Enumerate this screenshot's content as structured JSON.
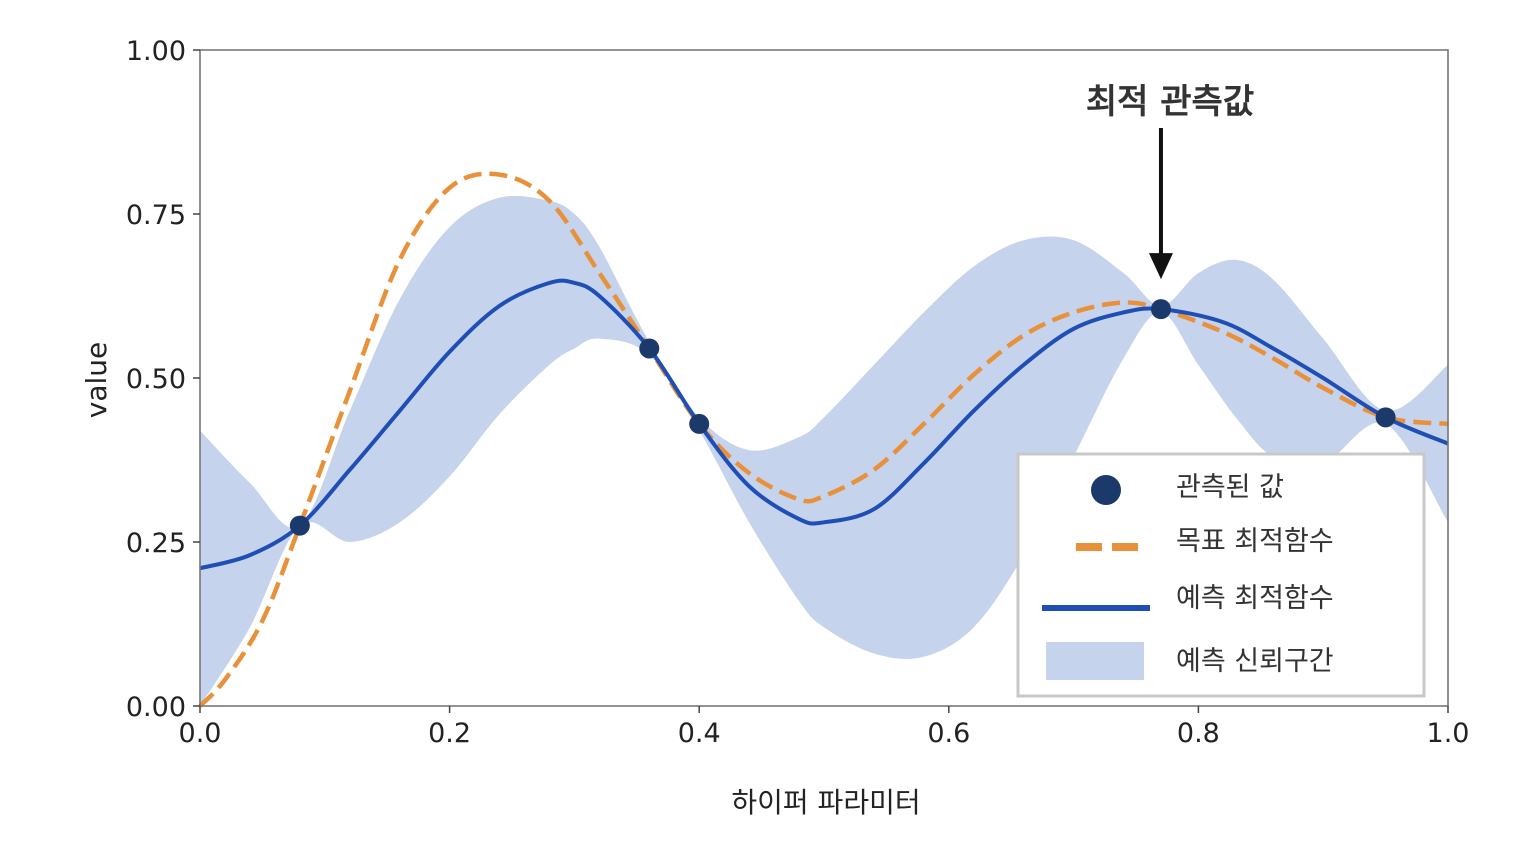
{
  "chart_data": {
    "type": "line",
    "xlabel": "하이퍼 파라미터",
    "ylabel": "value",
    "xlim": [
      0.0,
      1.0
    ],
    "ylim": [
      0.0,
      1.0
    ],
    "xticks": [
      0.0,
      0.2,
      0.4,
      0.6,
      0.8,
      1.0
    ],
    "xtick_labels": [
      "0.0",
      "0.2",
      "0.4",
      "0.6",
      "0.8",
      "1.0"
    ],
    "yticks": [
      0.0,
      0.25,
      0.5,
      0.75,
      1.0
    ],
    "ytick_labels": [
      "0.00",
      "0.25",
      "0.50",
      "0.75",
      "1.00"
    ],
    "grid": false,
    "legend_position": "bottom-right",
    "annotation": {
      "text": "최적 관측값",
      "x": 0.77,
      "y": 0.605
    },
    "series": [
      {
        "name": "관측된 값",
        "kind": "scatter",
        "color": "#1b3a6b",
        "x": [
          0.08,
          0.36,
          0.4,
          0.77,
          0.95
        ],
        "y": [
          0.275,
          0.545,
          0.43,
          0.605,
          0.44
        ]
      },
      {
        "name": "목표 최적함수",
        "kind": "dashed-line",
        "color": "#e8913a",
        "x": [
          0.0,
          0.02,
          0.05,
          0.08,
          0.12,
          0.16,
          0.2,
          0.24,
          0.28,
          0.32,
          0.36,
          0.4,
          0.44,
          0.48,
          0.5,
          0.54,
          0.58,
          0.62,
          0.66,
          0.7,
          0.74,
          0.77,
          0.82,
          0.86,
          0.9,
          0.95,
          1.0
        ],
        "y": [
          0.0,
          0.04,
          0.13,
          0.275,
          0.48,
          0.68,
          0.79,
          0.81,
          0.77,
          0.66,
          0.545,
          0.43,
          0.355,
          0.315,
          0.32,
          0.36,
          0.43,
          0.505,
          0.565,
          0.6,
          0.615,
          0.605,
          0.57,
          0.53,
          0.485,
          0.44,
          0.43
        ]
      },
      {
        "name": "예측 최적함수",
        "kind": "line",
        "color": "#1f4fb4",
        "x": [
          0.0,
          0.04,
          0.08,
          0.12,
          0.16,
          0.2,
          0.24,
          0.28,
          0.3,
          0.32,
          0.36,
          0.4,
          0.44,
          0.48,
          0.5,
          0.54,
          0.58,
          0.62,
          0.66,
          0.7,
          0.74,
          0.77,
          0.82,
          0.86,
          0.9,
          0.95,
          1.0
        ],
        "y": [
          0.21,
          0.23,
          0.275,
          0.36,
          0.45,
          0.54,
          0.61,
          0.645,
          0.645,
          0.625,
          0.545,
          0.43,
          0.335,
          0.285,
          0.28,
          0.3,
          0.37,
          0.45,
          0.52,
          0.575,
          0.6,
          0.605,
          0.585,
          0.545,
          0.5,
          0.44,
          0.4
        ]
      },
      {
        "name": "예측 신뢰구간",
        "kind": "band",
        "color": "#c5d3ec",
        "x": [
          0.0,
          0.04,
          0.08,
          0.12,
          0.16,
          0.2,
          0.24,
          0.28,
          0.3,
          0.32,
          0.36,
          0.4,
          0.44,
          0.48,
          0.5,
          0.54,
          0.58,
          0.62,
          0.66,
          0.7,
          0.74,
          0.77,
          0.8,
          0.83,
          0.86,
          0.9,
          0.95,
          1.0
        ],
        "upper": [
          0.42,
          0.34,
          0.275,
          0.45,
          0.62,
          0.73,
          0.775,
          0.77,
          0.75,
          0.7,
          0.555,
          0.44,
          0.39,
          0.41,
          0.44,
          0.52,
          0.6,
          0.67,
          0.71,
          0.71,
          0.66,
          0.61,
          0.66,
          0.68,
          0.65,
          0.56,
          0.45,
          0.52
        ],
        "lower": [
          0.0,
          0.12,
          0.275,
          0.25,
          0.28,
          0.35,
          0.445,
          0.52,
          0.545,
          0.56,
          0.535,
          0.42,
          0.28,
          0.16,
          0.12,
          0.08,
          0.075,
          0.12,
          0.23,
          0.38,
          0.53,
          0.6,
          0.52,
          0.44,
          0.38,
          0.37,
          0.43,
          0.28
        ]
      }
    ]
  }
}
